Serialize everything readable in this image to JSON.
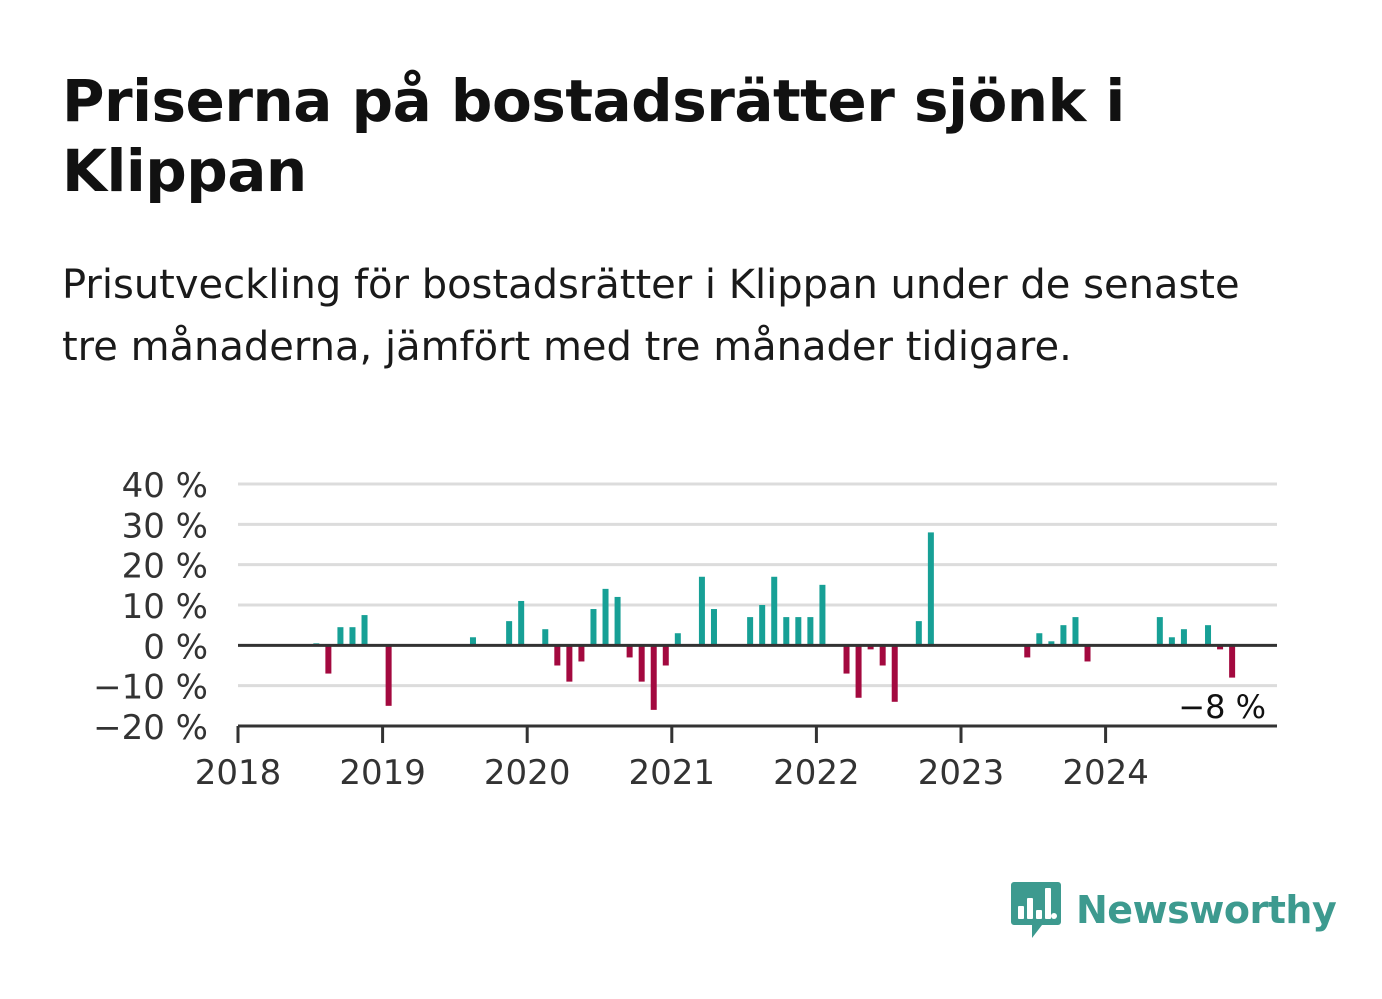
{
  "header": {
    "title": "Priserna på bostadsrätter sjönk i Klippan",
    "subtitle": "Prisutveckling för bostadsrätter i Klippan under de senaste tre månaderna, jämfört med tre månader tidigare."
  },
  "brand": {
    "name": "Newsworthy",
    "icon": "newsworthy-logo-icon",
    "color": "#3d9a8f"
  },
  "colors": {
    "positive": "#17a096",
    "negative": "#a3093f",
    "grid": "#dcdcdc",
    "axis": "#333333"
  },
  "chart_data": {
    "type": "bar",
    "title": "Priserna på bostadsrätter sjönk i Klippan",
    "subtitle": "Prisutveckling för bostadsrätter i Klippan under de senaste tre månaderna, jämfört med tre månader tidigare.",
    "xlabel": "",
    "ylabel": "",
    "ylim": [
      -20,
      40
    ],
    "yticks": [
      -20,
      -10,
      0,
      10,
      20,
      30,
      40
    ],
    "ytick_labels": [
      "−20 %",
      "−10 %",
      "0 %",
      "10 %",
      "20 %",
      "30 %",
      "40 %"
    ],
    "xtick_labels": [
      "2018",
      "2019",
      "2020",
      "2021",
      "2022",
      "2023",
      "2024"
    ],
    "grid": true,
    "annotation": {
      "date": "2024-11",
      "label": "−8 %"
    },
    "series": [
      {
        "values": [
          {
            "date": "2018-07",
            "value": 0.5
          },
          {
            "date": "2018-08",
            "value": -7
          },
          {
            "date": "2018-09",
            "value": 4.5
          },
          {
            "date": "2018-10",
            "value": 4.5
          },
          {
            "date": "2018-11",
            "value": 7.5
          },
          {
            "date": "2019-01",
            "value": -15
          },
          {
            "date": "2019-08",
            "value": 2
          },
          {
            "date": "2019-11",
            "value": 6
          },
          {
            "date": "2019-12",
            "value": 11
          },
          {
            "date": "2020-02",
            "value": 4
          },
          {
            "date": "2020-03",
            "value": -5
          },
          {
            "date": "2020-04",
            "value": -9
          },
          {
            "date": "2020-05",
            "value": -4
          },
          {
            "date": "2020-06",
            "value": 9
          },
          {
            "date": "2020-07",
            "value": 14
          },
          {
            "date": "2020-08",
            "value": 12
          },
          {
            "date": "2020-09",
            "value": -3
          },
          {
            "date": "2020-10",
            "value": -9
          },
          {
            "date": "2020-11",
            "value": -16
          },
          {
            "date": "2020-12",
            "value": -5
          },
          {
            "date": "2021-01",
            "value": 3
          },
          {
            "date": "2021-03",
            "value": 17
          },
          {
            "date": "2021-04",
            "value": 9
          },
          {
            "date": "2021-07",
            "value": 7
          },
          {
            "date": "2021-08",
            "value": 10
          },
          {
            "date": "2021-09",
            "value": 17
          },
          {
            "date": "2021-10",
            "value": 7
          },
          {
            "date": "2021-11",
            "value": 7
          },
          {
            "date": "2021-12",
            "value": 7
          },
          {
            "date": "2022-01",
            "value": 15
          },
          {
            "date": "2022-03",
            "value": -7
          },
          {
            "date": "2022-04",
            "value": -13
          },
          {
            "date": "2022-05",
            "value": -1
          },
          {
            "date": "2022-06",
            "value": -5
          },
          {
            "date": "2022-07",
            "value": -14
          },
          {
            "date": "2022-09",
            "value": 6
          },
          {
            "date": "2022-10",
            "value": 28
          },
          {
            "date": "2023-06",
            "value": -3
          },
          {
            "date": "2023-07",
            "value": 3
          },
          {
            "date": "2023-08",
            "value": 1
          },
          {
            "date": "2023-09",
            "value": 5
          },
          {
            "date": "2023-10",
            "value": 7
          },
          {
            "date": "2023-11",
            "value": -4
          },
          {
            "date": "2024-05",
            "value": 7
          },
          {
            "date": "2024-06",
            "value": 2
          },
          {
            "date": "2024-07",
            "value": 4
          },
          {
            "date": "2024-09",
            "value": 5
          },
          {
            "date": "2024-10",
            "value": -1
          },
          {
            "date": "2024-11",
            "value": -8
          }
        ]
      }
    ]
  }
}
